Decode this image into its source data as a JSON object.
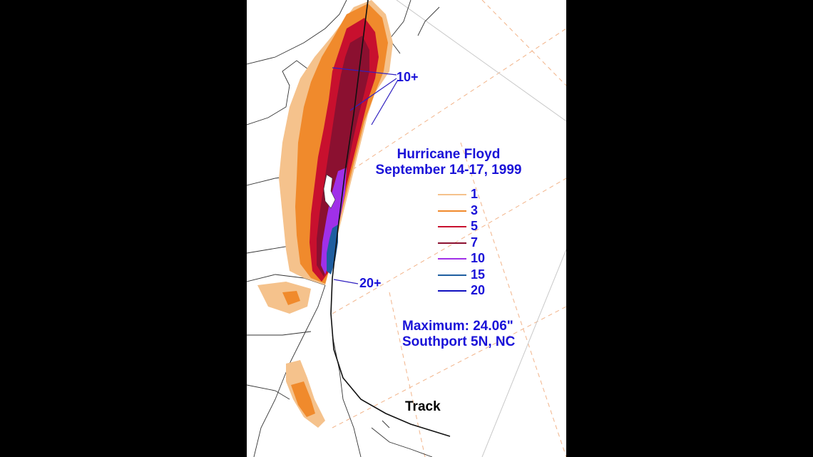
{
  "title_line1": "Hurricane Floyd",
  "title_line2": "September 14-17, 1999",
  "legend": [
    {
      "value": "1",
      "color": "#f5c28c"
    },
    {
      "value": "3",
      "color": "#f08a2c"
    },
    {
      "value": "5",
      "color": "#c8102e"
    },
    {
      "value": "7",
      "color": "#8b1030"
    },
    {
      "value": "10",
      "color": "#a030e8"
    },
    {
      "value": "15",
      "color": "#1e5ea0"
    },
    {
      "value": "20",
      "color": "#1010c0"
    }
  ],
  "maximum_line1": "Maximum:  24.06\"",
  "maximum_line2": "Southport 5N, NC",
  "annotations": {
    "top_label": "10+",
    "bottom_label": "20+",
    "track_label": "Track"
  }
}
